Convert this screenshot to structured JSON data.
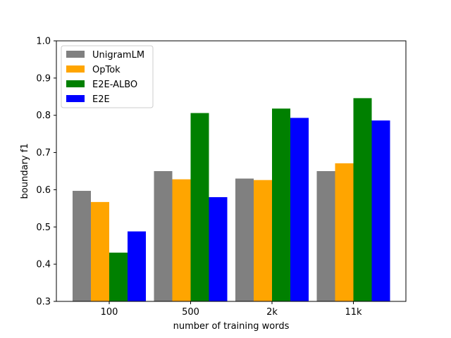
{
  "chart_data": {
    "type": "bar",
    "title": "",
    "xlabel": "number of training words",
    "ylabel": "boundary f1",
    "categories": [
      "100",
      "500",
      "2k",
      "11k"
    ],
    "ylim": [
      0.3,
      1.0
    ],
    "yticks": [
      "0.3",
      "0.4",
      "0.5",
      "0.6",
      "0.7",
      "0.8",
      "0.9",
      "1.0"
    ],
    "grid": false,
    "legend_position": "top-left",
    "series": [
      {
        "name": "UnigramLM",
        "color": "#808080",
        "values": [
          0.597,
          0.65,
          0.63,
          0.65
        ]
      },
      {
        "name": "OpTok",
        "color": "#ffa500",
        "values": [
          0.567,
          0.628,
          0.626,
          0.671
        ]
      },
      {
        "name": "E2E-ALBO",
        "color": "#008000",
        "values": [
          0.431,
          0.806,
          0.818,
          0.846
        ]
      },
      {
        "name": "E2E",
        "color": "#0000ff",
        "values": [
          0.488,
          0.58,
          0.793,
          0.786
        ]
      }
    ]
  }
}
